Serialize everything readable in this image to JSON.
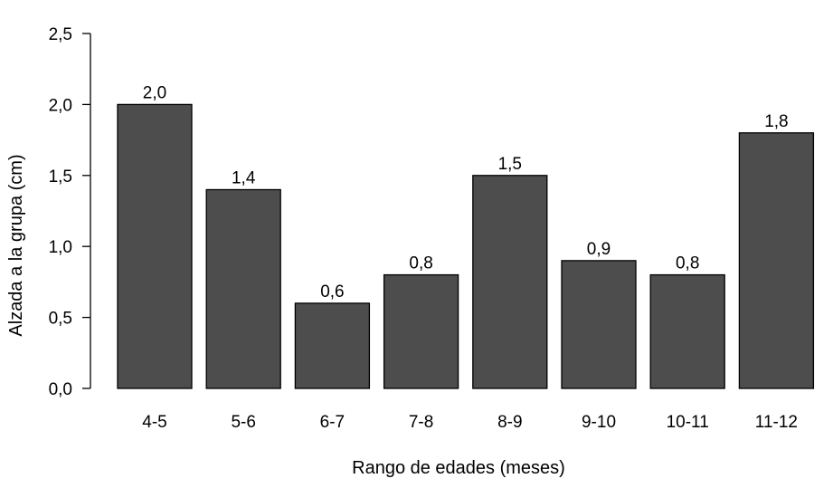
{
  "chart_data": {
    "type": "bar",
    "categories": [
      "4-5",
      "5-6",
      "6-7",
      "7-8",
      "8-9",
      "9-10",
      "10-11",
      "11-12"
    ],
    "values": [
      2.0,
      1.4,
      0.6,
      0.8,
      1.5,
      0.9,
      0.8,
      1.8
    ],
    "data_labels": [
      "2,0",
      "1,4",
      "0,6",
      "0,8",
      "1,5",
      "0,9",
      "0,8",
      "1,8"
    ],
    "xlabel": "Rango de edades (meses)",
    "ylabel": "Alzada a la grupa (cm)",
    "ylim": [
      0,
      2.5
    ],
    "yticks": [
      0,
      0.5,
      1.0,
      1.5,
      2.0,
      2.5
    ],
    "ytick_labels": [
      "0,0",
      "0,5",
      "1,0",
      "1,5",
      "2,0",
      "2,5"
    ],
    "bar_color": "#4d4d4d",
    "grid": false,
    "legend": "none"
  }
}
